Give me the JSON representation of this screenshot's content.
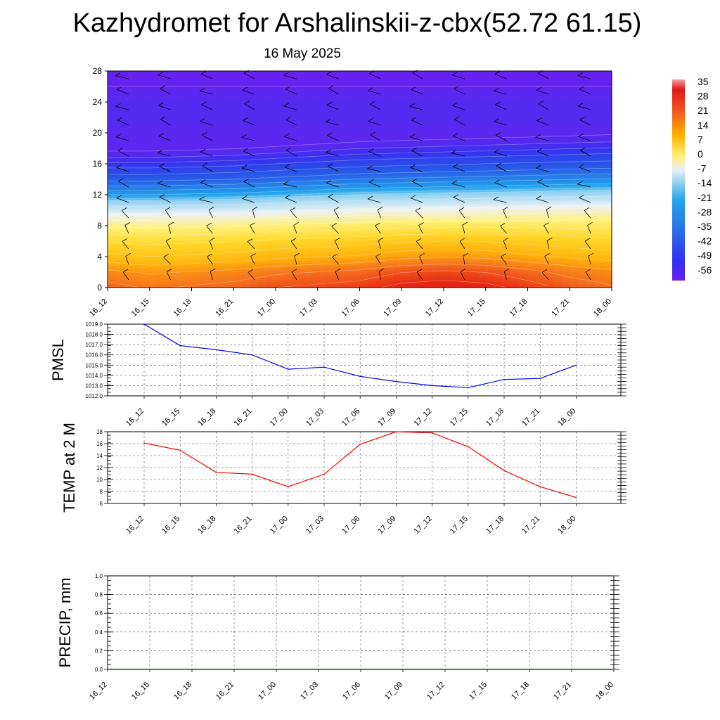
{
  "header": {
    "title": "Kazhydromet for Arshalinskii-z-cbx(52.72 61.15)",
    "date": "16 May 2025"
  },
  "colors": {
    "pmsl_line": "#0000ff",
    "temp_line": "#ff0000",
    "precip_line": "#006400",
    "grid": "#555555"
  },
  "chart_data": [
    {
      "type": "heatmap",
      "name": "cross-section",
      "x": [
        "16_12",
        "16_15",
        "16_18",
        "16_21",
        "17_00",
        "17_03",
        "17_06",
        "17_09",
        "17_12",
        "17_15",
        "17_18",
        "17_21",
        "18_00"
      ],
      "yticks": [
        0,
        4,
        8,
        12,
        16,
        20,
        24,
        28
      ],
      "ylim": [
        0,
        28
      ],
      "colorbar": {
        "labels": [
          "35",
          "28",
          "21",
          "14",
          "7",
          "0",
          "-7",
          "-14",
          "-21",
          "-28",
          "-35",
          "-42",
          "-49",
          "-56"
        ],
        "range": [
          -63,
          42
        ]
      },
      "profile": [
        {
          "h": 0,
          "t": 16
        },
        {
          "h": 2,
          "t": 12
        },
        {
          "h": 4,
          "t": 5
        },
        {
          "h": 6,
          "t": 0
        },
        {
          "h": 8,
          "t": -7
        },
        {
          "h": 10,
          "t": -15
        },
        {
          "h": 11.5,
          "t": -20
        },
        {
          "h": 12,
          "t": -26
        },
        {
          "h": 13,
          "t": -32
        },
        {
          "h": 14,
          "t": -38
        },
        {
          "h": 15,
          "t": -42
        },
        {
          "h": 16,
          "t": -46
        },
        {
          "h": 17,
          "t": -51
        },
        {
          "h": 18,
          "t": -56
        },
        {
          "h": 19,
          "t": -58
        },
        {
          "h": 20,
          "t": -57
        },
        {
          "h": 22,
          "t": -54
        },
        {
          "h": 23,
          "t": -55
        },
        {
          "h": 24,
          "t": -54
        },
        {
          "h": 26,
          "t": -60
        },
        {
          "h": 28,
          "t": -62
        }
      ],
      "surface_t": [
        15,
        13,
        14,
        15,
        17,
        18,
        19,
        22,
        23,
        22,
        19,
        16,
        14
      ],
      "tropopause_h": [
        11.6,
        11.6,
        11.7,
        11.8,
        12.0,
        12.2,
        12.4,
        12.5,
        12.6,
        12.7,
        12.8,
        12.9,
        13.0
      ],
      "wind_levels": [
        1,
        3,
        5,
        7,
        9,
        11,
        13,
        15,
        17,
        19,
        21,
        23,
        25,
        27
      ]
    },
    {
      "type": "line",
      "name": "pmsl",
      "ylabel": "PMSL",
      "x": [
        "16_12",
        "16_15",
        "16_18",
        "16_21",
        "17_00",
        "17_03",
        "17_06",
        "17_09",
        "17_12",
        "17_15",
        "17_18",
        "17_21",
        "18_00"
      ],
      "values": [
        1019.0,
        1016.9,
        1016.5,
        1016.0,
        1014.6,
        1014.8,
        1013.9,
        1013.4,
        1013.0,
        1012.8,
        1013.6,
        1013.7,
        1015.0
      ],
      "yticks": [
        "1012.0",
        "1013.0",
        "1014.0",
        "1015.0",
        "1016.0",
        "1017.0",
        "1018.0",
        "1019.0"
      ],
      "ylim": [
        1012,
        1019
      ]
    },
    {
      "type": "line",
      "name": "temp",
      "ylabel": "TEMP at 2 M",
      "x": [
        "16_12",
        "16_15",
        "16_18",
        "16_21",
        "17_00",
        "17_03",
        "17_06",
        "17_09",
        "17_12",
        "17_15",
        "17_18",
        "17_21",
        "18_00"
      ],
      "values": [
        16.1,
        14.9,
        11.2,
        10.9,
        8.8,
        10.9,
        15.9,
        18.0,
        17.8,
        15.5,
        11.5,
        8.8,
        7.0
      ],
      "yticks": [
        "6",
        "8",
        "10",
        "12",
        "14",
        "16",
        "18"
      ],
      "ylim": [
        6,
        18
      ]
    },
    {
      "type": "line",
      "name": "precip",
      "ylabel": "PRECIP, mm",
      "x": [
        "16_12",
        "16_15",
        "16_18",
        "16_21",
        "17_00",
        "17_03",
        "17_06",
        "17_09",
        "17_12",
        "17_15",
        "17_18",
        "17_21",
        "18_00"
      ],
      "values": [
        0,
        0,
        0,
        0,
        0,
        0,
        0,
        0,
        0,
        0,
        0,
        0,
        0
      ],
      "yticks": [
        "0.0",
        "0.2",
        "0.4",
        "0.6",
        "0.8",
        "1.0"
      ],
      "ylim": [
        0,
        1
      ]
    }
  ]
}
